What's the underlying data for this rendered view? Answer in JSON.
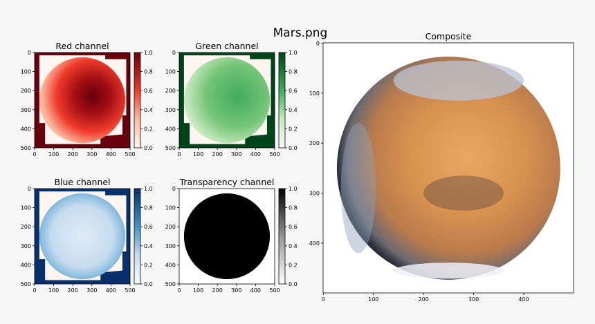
{
  "title": "Mars.png",
  "chart_data": [
    {
      "type": "image",
      "title": "Red channel",
      "colormap": "Reds",
      "xlim": [
        0,
        500
      ],
      "ylim": [
        500,
        0
      ],
      "xticks": [
        0,
        100,
        200,
        300,
        400,
        500
      ],
      "yticks": [
        0,
        100,
        200,
        300,
        400,
        500
      ],
      "clim": [
        0,
        1
      ],
      "cticks": [
        {
          "value": 0,
          "label": "0.0"
        },
        0.2,
        0.4,
        0.6,
        0.8,
        {
          "value": 1,
          "label": "1.0"
        }
      ]
    },
    {
      "type": "image",
      "title": "Green channel",
      "colormap": "Greens",
      "xlim": [
        0,
        500
      ],
      "ylim": [
        500,
        0
      ],
      "xticks": [
        0,
        100,
        200,
        300,
        400,
        500
      ],
      "yticks": [
        0,
        100,
        200,
        300,
        400,
        500
      ],
      "clim": [
        0,
        1
      ],
      "cticks": [
        {
          "value": 0,
          "label": "0.0"
        },
        0.2,
        0.4,
        0.6,
        0.8,
        {
          "value": 1,
          "label": "1.0"
        }
      ]
    },
    {
      "type": "image",
      "title": "Blue channel",
      "colormap": "Blues",
      "xlim": [
        0,
        500
      ],
      "ylim": [
        500,
        0
      ],
      "xticks": [
        0,
        100,
        200,
        300,
        400,
        500
      ],
      "yticks": [
        0,
        100,
        200,
        300,
        400,
        500
      ],
      "clim": [
        0,
        1
      ],
      "cticks": [
        {
          "value": 0,
          "label": "0.0"
        },
        0.2,
        0.4,
        0.6,
        0.8,
        {
          "value": 1,
          "label": "1.0"
        }
      ]
    },
    {
      "type": "image",
      "title": "Transparency channel",
      "colormap": "Greys",
      "xlim": [
        0,
        500
      ],
      "ylim": [
        500,
        0
      ],
      "xticks": [
        0,
        100,
        200,
        300,
        400,
        500
      ],
      "yticks": [
        0,
        100,
        200,
        300,
        400,
        500
      ],
      "clim": [
        0,
        1
      ],
      "cticks": [
        {
          "value": 0,
          "label": "0.0"
        },
        0.2,
        0.4,
        0.6,
        0.8,
        {
          "value": 1,
          "label": "1.0"
        }
      ]
    },
    {
      "type": "image",
      "title": "Composite",
      "xlim": [
        -0.5,
        499.5
      ],
      "ylim": [
        499.5,
        -0.5
      ],
      "xticks": [
        0,
        100,
        200,
        300,
        400
      ],
      "yticks": [
        0,
        100,
        200,
        300,
        400
      ]
    }
  ]
}
